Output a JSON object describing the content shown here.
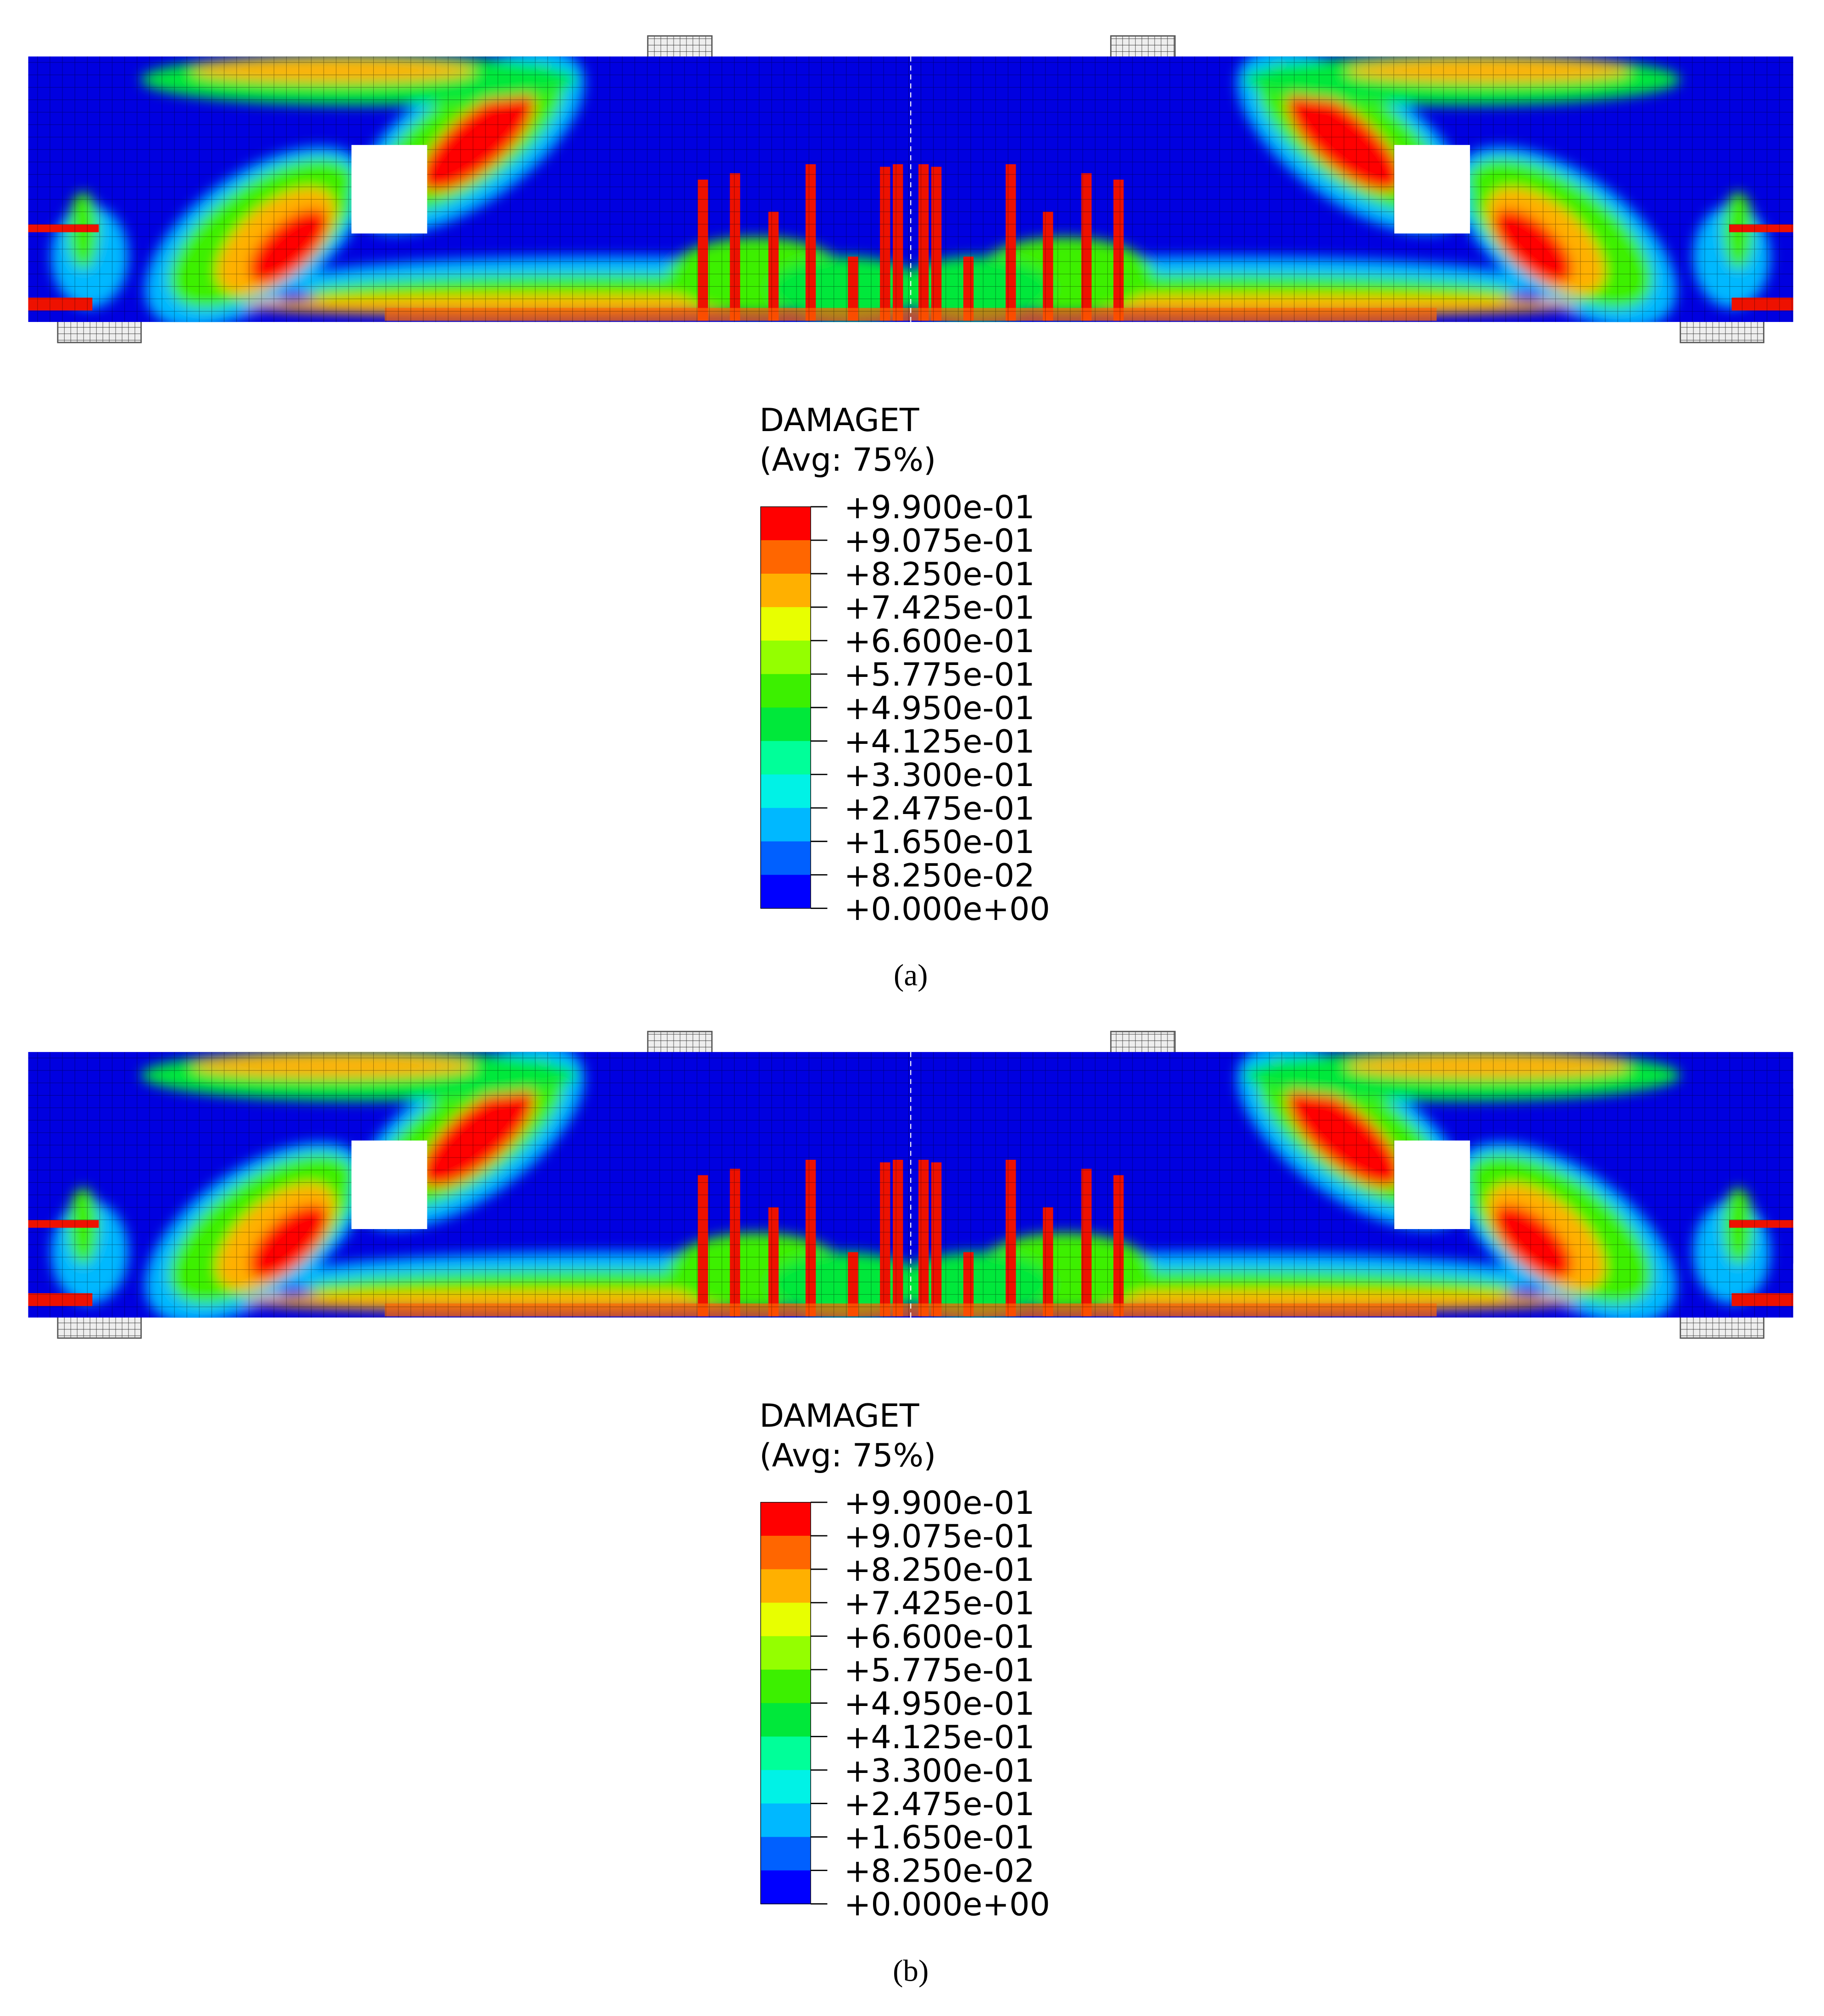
{
  "panels": [
    {
      "legend_title": "DAMAGET",
      "legend_subtitle": "(Avg: 75%)",
      "labels": [
        "+9.900e-01",
        "+9.075e-01",
        "+8.250e-01",
        "+7.425e-01",
        "+6.600e-01",
        "+5.775e-01",
        "+4.950e-01",
        "+4.125e-01",
        "+3.300e-01",
        "+2.475e-01",
        "+1.650e-01",
        "+8.250e-02",
        "+0.000e+00"
      ],
      "colors": [
        "#ff0000",
        "#ff6600",
        "#ffb000",
        "#e8ff00",
        "#94ff00",
        "#3cf000",
        "#00e83a",
        "#00ff99",
        "#00f2e6",
        "#00b8ff",
        "#0060ff",
        "#0000ff"
      ],
      "caption": "(a)"
    },
    {
      "legend_title": "DAMAGET",
      "legend_subtitle": "(Avg: 75%)",
      "labels": [
        "+9.900e-01",
        "+9.075e-01",
        "+8.250e-01",
        "+7.425e-01",
        "+6.600e-01",
        "+5.775e-01",
        "+4.950e-01",
        "+4.125e-01",
        "+3.300e-01",
        "+2.475e-01",
        "+1.650e-01",
        "+8.250e-02",
        "+0.000e+00"
      ],
      "colors": [
        "#ff0000",
        "#ff6600",
        "#ffb000",
        "#e8ff00",
        "#94ff00",
        "#3cf000",
        "#00e83a",
        "#00ff99",
        "#00f2e6",
        "#00b8ff",
        "#0060ff",
        "#0000ff"
      ],
      "caption": "(b)"
    }
  ]
}
